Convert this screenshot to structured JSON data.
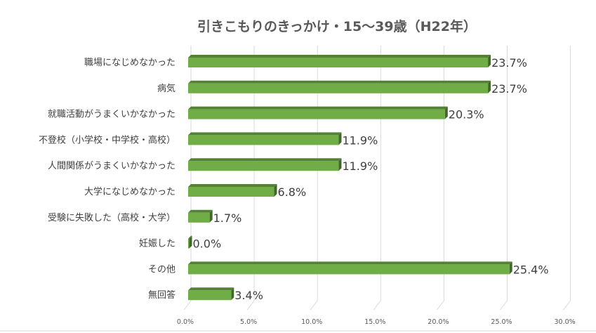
{
  "chart_data": {
    "type": "bar",
    "orientation": "horizontal",
    "title": "引きこもりのきっかけ・15～39歳（H22年）",
    "categories": [
      "職場になじめなかった",
      "病気",
      "就職活動がうまくいかなかった",
      "不登校（小学校・中学校・高校）",
      "人間関係がうまくいかなかった",
      "大学になじめなかった",
      "受験に失敗した（高校・大学）",
      "妊娠した",
      "その他",
      "無回答"
    ],
    "values": [
      23.7,
      23.7,
      20.3,
      11.9,
      11.9,
      6.8,
      1.7,
      0.0,
      25.4,
      3.4
    ],
    "data_labels": [
      "23.7%",
      "23.7%",
      "20.3%",
      "11.9%",
      "11.9%",
      "6.8%",
      "1.7%",
      "0.0%",
      "25.4%",
      "3.4%"
    ],
    "xlim": [
      0,
      30
    ],
    "x_ticks": [
      "0.0%",
      "5.0%",
      "10.0%",
      "15.0%",
      "20.0%",
      "25.0%",
      "30.0%"
    ],
    "grid": true,
    "style": "3d-bar",
    "colors": {
      "bar": "#70AD47",
      "bar_top": "#548235",
      "bar_side": "#41672A",
      "grid": "#D9D9D9"
    }
  }
}
